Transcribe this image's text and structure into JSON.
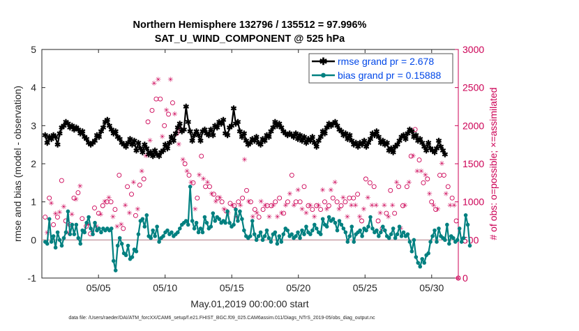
{
  "chart_data": {
    "type": "line",
    "title_line1": "Northern Hemisphere 132796 / 135512 = 97.996%",
    "title_line2": "SAT_U_WIND_COMPONENT @ 525 hPa",
    "xlabel": "May.01,2019 00:00:00 start",
    "ylabel_left": "rmse and bias (model - observation)",
    "ylabel_right": "# of obs: o=possible; ×=assimilated",
    "footer": "data file: /Users/raeder/DAI/ATM_forcXX/CAM6_setup/f.e21.FHIST_BGC.f09_025.CAM6assim.011/Diags_NTrS_2019-05/obs_diag_output.nc",
    "xlim": [
      0.75,
      32.0
    ],
    "ylim_left": [
      -1,
      5
    ],
    "ylim_right": [
      0,
      3000
    ],
    "left_ticks": [
      "-1",
      "0",
      "1",
      "2",
      "3",
      "4",
      "5"
    ],
    "right_ticks": [
      "0",
      "500",
      "1000",
      "1500",
      "2000",
      "2500",
      "3000"
    ],
    "x_ticks": [
      {
        "day": 5,
        "label": "05/05"
      },
      {
        "day": 10,
        "label": "05/10"
      },
      {
        "day": 15,
        "label": "05/15"
      },
      {
        "day": 20,
        "label": "05/20"
      },
      {
        "day": 25,
        "label": "05/25"
      },
      {
        "day": 30,
        "label": "05/30"
      }
    ],
    "colors": {
      "rmse": "#000000",
      "bias": "#008080",
      "obs": "#cc0055",
      "zero_line": "#c8a0a8",
      "legend_text": "#0047e8"
    },
    "legend": {
      "rmse": "rmse grand pr = 2.678",
      "bias": "bias grand pr = 0.15888",
      "placement": "top-right"
    },
    "rmse": [
      2.75,
      2.55,
      2.7,
      2.65,
      2.75,
      2.7,
      2.5,
      2.8,
      2.95,
      3.0,
      3.1,
      3.05,
      2.95,
      3.0,
      2.9,
      2.95,
      2.9,
      2.8,
      2.85,
      2.7,
      2.65,
      2.55,
      2.5,
      2.55,
      2.6,
      2.75,
      2.7,
      2.85,
      2.95,
      3.1,
      3.15,
      3.0,
      2.9,
      2.8,
      2.85,
      2.7,
      2.65,
      2.55,
      2.5,
      2.45,
      2.55,
      2.65,
      2.5,
      2.6,
      2.35,
      2.55,
      2.4,
      2.3,
      2.5,
      2.4,
      2.25,
      2.3,
      2.2,
      2.35,
      2.25,
      2.2,
      2.3,
      2.35,
      2.5,
      2.4,
      2.55,
      2.7,
      2.6,
      2.8,
      2.95,
      3.05,
      2.85,
      2.9,
      3.5,
      3.1,
      2.85,
      2.6,
      2.75,
      2.85,
      2.75,
      2.6,
      2.85,
      2.9,
      2.8,
      2.75,
      2.9,
      2.75,
      3.0,
      2.95,
      3.1,
      3.05,
      3.15,
      2.8,
      2.75,
      2.95,
      3.0,
      3.45,
      3.05,
      3.1,
      2.85,
      2.7,
      2.8,
      2.6,
      2.5,
      2.55,
      2.65,
      2.6,
      2.7,
      2.55,
      2.5,
      2.65,
      2.6,
      2.75,
      2.7,
      2.85,
      2.95,
      3.1,
      3.0,
      3.05,
      2.95,
      2.85,
      2.8,
      2.75,
      2.8,
      2.75,
      2.7,
      2.8,
      2.65,
      2.75,
      2.6,
      2.7,
      2.55,
      2.65,
      2.6,
      2.7,
      2.55,
      2.45,
      2.6,
      2.7,
      2.85,
      2.8,
      2.95,
      3.05,
      3.0,
      3.05,
      3.1,
      3.0,
      2.9,
      2.85,
      2.75,
      2.8,
      2.65,
      2.75,
      2.6,
      2.5,
      2.55,
      2.45,
      2.55,
      2.5,
      2.6,
      2.45,
      2.55,
      2.65,
      2.8,
      2.75,
      2.85,
      2.7,
      2.55,
      2.6,
      2.5,
      2.55,
      2.35,
      2.4,
      2.3,
      2.45,
      2.5,
      2.6,
      2.7,
      2.75,
      2.65,
      2.8,
      2.9,
      2.85,
      2.7,
      2.75,
      2.6,
      2.65,
      2.55,
      2.45,
      2.35,
      2.55,
      2.4,
      2.35,
      2.3,
      2.4,
      2.6,
      2.45,
      2.35,
      2.25
    ],
    "bias": [
      -0.05,
      -0.1,
      0.55,
      -0.05,
      0.1,
      -0.2,
      0.2,
      0.0,
      -0.15,
      0.05,
      0.2,
      0.75,
      0.15,
      0.4,
      0.15,
      0.4,
      0.05,
      -0.1,
      0.25,
      0.2,
      0.45,
      0.6,
      0.3,
      0.15,
      0.45,
      0.25,
      0.3,
      0.2,
      0.3,
      0.25,
      0.3,
      0.25,
      0.3,
      -0.55,
      -0.8,
      -0.15,
      0.05,
      -0.1,
      -0.35,
      -0.4,
      -0.15,
      -0.5,
      -0.45,
      -0.25,
      -0.3,
      0.15,
      0.5,
      0.55,
      0.35,
      0.65,
      0.1,
      0.05,
      0.25,
      0.1,
      0.35,
      -0.05,
      0.05,
      0.1,
      0.2,
      0.25,
      0.15,
      0.2,
      0.1,
      0.15,
      0.2,
      0.3,
      0.4,
      0.45,
      0.5,
      0.4,
      1.4,
      0.5,
      0.3,
      0.45,
      0.2,
      0.3,
      0.2,
      0.6,
      0.45,
      0.3,
      0.35,
      0.7,
      0.5,
      0.6,
      0.55,
      0.45,
      0.5,
      0.45,
      0.75,
      0.45,
      0.35,
      0.4,
      0.8,
      0.5,
      0.75,
      0.55,
      0.25,
      0.1,
      0.05,
      0.1,
      0.5,
      0.15,
      0.0,
      0.1,
      0.2,
      0.0,
      0.1,
      0.25,
      0.05,
      -0.05,
      0.15,
      0.2,
      -0.1,
      0.1,
      -0.05,
      0.15,
      0.3,
      0.25,
      0.1,
      0.15,
      0.05,
      0.1,
      0.2,
      0.05,
      0.25,
      0.15,
      0.35,
      0.2,
      0.15,
      0.25,
      0.4,
      0.3,
      0.2,
      0.15,
      0.55,
      0.4,
      0.35,
      0.6,
      0.5,
      0.55,
      0.45,
      0.25,
      0.5,
      0.4,
      0.3,
      0.2,
      -0.05,
      0.1,
      0.35,
      -0.05,
      0.15,
      0.2,
      0.25,
      0.1,
      0.3,
      0.25,
      0.35,
      0.6,
      0.3,
      0.2,
      0.25,
      0.1,
      0.2,
      0.35,
      0.25,
      0.1,
      0.05,
      0.15,
      0.3,
      0.05,
      0.15,
      0.35,
      0.1,
      0.2,
      0.1,
      0.15,
      -0.05,
      -0.3,
      0.0,
      -0.45,
      -0.6,
      -0.7,
      -0.5,
      -0.6,
      -0.4,
      -0.35,
      -0.05,
      0.1,
      0.25,
      -0.05,
      0.3,
      0.1,
      0.05,
      0.0,
      0.4,
      -0.1,
      0.1,
      0.05,
      -0.05,
      0.0,
      0.3,
      -0.05,
      0.05,
      0.65,
      0.4,
      -0.15
    ],
    "obs_possible": [
      800,
      650,
      1050,
      1030,
      700,
      900,
      800,
      920,
      1280,
      980,
      750,
      640,
      700,
      880,
      1050,
      1080,
      1120,
      1250,
      780,
      650,
      680,
      750,
      580,
      650,
      920,
      720,
      850,
      880,
      950,
      1050,
      1000,
      1100,
      1000,
      850,
      900,
      720,
      1350,
      750,
      650,
      1000,
      1200,
      900,
      1100,
      1300,
      820,
      950,
      1220,
      1450,
      1300,
      1650,
      2050,
      1850,
      2200,
      2600,
      2350,
      2650,
      2350,
      1900,
      2000,
      2250,
      2150,
      2650,
      2300,
      2200,
      1900,
      1800,
      1950,
      1600,
      1500,
      1450,
      1350,
      1300,
      1250,
      950,
      1050,
      1400,
      1600,
      1350,
      1200,
      1300,
      1200,
      1150,
      1100,
      1050,
      1050,
      1100,
      1000,
      950,
      880,
      900,
      980,
      1000,
      950,
      850,
      1000,
      1000,
      1050,
      1600,
      1150,
      1050,
      1000,
      850,
      900,
      900,
      800,
      1050,
      900,
      1000,
      950,
      850,
      950,
      1000,
      1000,
      850,
      1050,
      900,
      850,
      1000,
      1000,
      1150,
      1350,
      1000,
      1000,
      1200,
      1000,
      950,
      1200,
      900,
      950,
      1000,
      900,
      850,
      950,
      1000,
      900,
      1200,
      1000,
      950,
      950,
      1200,
      1050,
      1300,
      1000,
      950,
      950,
      1100,
      1000,
      850,
      1050,
      1000,
      1050,
      1000,
      1100,
      850,
      750,
      950,
      1300,
      1100,
      1250,
      1000,
      1200,
      1000,
      750,
      900,
      650,
      1000,
      850,
      850,
      1150,
      1000,
      850,
      1300,
      1200,
      700,
      950,
      1000,
      1200,
      1300,
      1600,
      1650,
      1950,
      1450,
      1550,
      1450,
      1250,
      1400,
      1300,
      1150,
      1000,
      1000,
      900,
      950,
      1350,
      1550,
      1350,
      1150,
      1200,
      1000,
      1050,
      1000,
      750,
      0
    ],
    "obs_assim": [
      750,
      600,
      1000,
      990,
      650,
      850,
      750,
      870,
      1240,
      940,
      700,
      600,
      660,
      840,
      1010,
      1040,
      1080,
      1210,
      740,
      610,
      640,
      710,
      540,
      610,
      880,
      680,
      810,
      840,
      910,
      1010,
      960,
      1060,
      960,
      810,
      860,
      680,
      1310,
      710,
      610,
      960,
      1160,
      860,
      1060,
      1260,
      780,
      910,
      1180,
      1410,
      1260,
      1610,
      2010,
      1810,
      2160,
      2560,
      2310,
      2610,
      2310,
      1860,
      1960,
      2210,
      2110,
      2610,
      2260,
      2160,
      1860,
      1760,
      1910,
      1560,
      1460,
      1410,
      1310,
      1260,
      1210,
      910,
      1010,
      1360,
      1560,
      1310,
      1160,
      1260,
      1160,
      1110,
      1060,
      1010,
      1010,
      1060,
      960,
      910,
      840,
      860,
      940,
      960,
      910,
      810,
      960,
      960,
      1010,
      1560,
      1110,
      1010,
      960,
      810,
      860,
      860,
      760,
      1010,
      860,
      960,
      910,
      810,
      910,
      960,
      960,
      810,
      1010,
      860,
      810,
      960,
      960,
      1110,
      1310,
      960,
      960,
      1160,
      960,
      910,
      1160,
      860,
      910,
      960,
      860,
      810,
      910,
      960,
      860,
      1160,
      960,
      910,
      910,
      1160,
      1010,
      1260,
      960,
      910,
      910,
      1060,
      960,
      810,
      1010,
      960,
      1010,
      960,
      1060,
      810,
      710,
      910,
      1260,
      1060,
      1210,
      960,
      1160,
      960,
      710,
      860,
      610,
      960,
      810,
      810,
      1110,
      960,
      810,
      1260,
      1160,
      660,
      910,
      960,
      1160,
      1260,
      1560,
      1610,
      1910,
      1410,
      1510,
      1410,
      1210,
      1360,
      1260,
      1110,
      960,
      960,
      860,
      910,
      1310,
      1510,
      1310,
      1110,
      1160,
      960,
      1010,
      960,
      710,
      0
    ]
  }
}
